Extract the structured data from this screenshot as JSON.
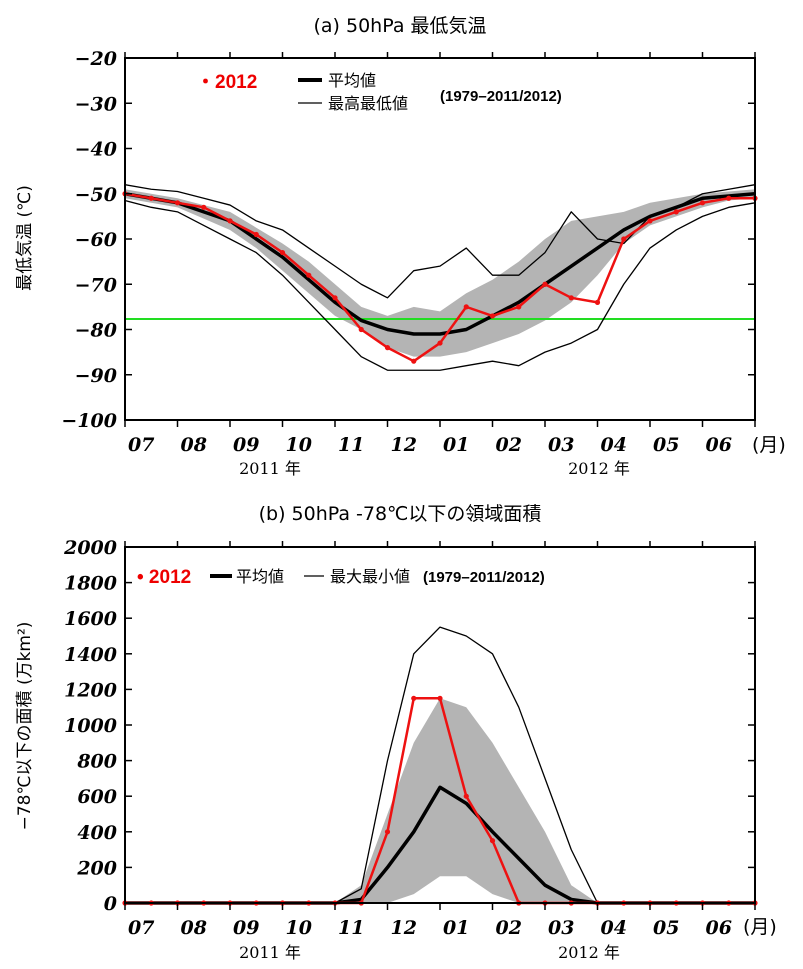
{
  "colors": {
    "red": "#ee1111",
    "mean": "#000000",
    "band": "#b4b4b4",
    "threshold": "#22dd22"
  },
  "months": [
    "07",
    "08",
    "09",
    "10",
    "11",
    "12",
    "01",
    "02",
    "03",
    "04",
    "05",
    "06"
  ],
  "month_unit": "(月)",
  "years": [
    "2011 年",
    "2012 年"
  ],
  "chart_data": [
    {
      "type": "line",
      "title": "(a) 50hPa 最低気温",
      "ylabel": "最低気温 (℃)",
      "ylim": [
        -100,
        -20
      ],
      "yticks": [
        -20,
        -30,
        -40,
        -50,
        -60,
        -70,
        -80,
        -90,
        -100
      ],
      "ytick_labels": [
        "−20",
        "−30",
        "−40",
        "−50",
        "−60",
        "−70",
        "−80",
        "−90",
        "−100"
      ],
      "threshold": -78,
      "legend": {
        "red": "・2012",
        "mean": "平均値",
        "minmax": "最高最低値",
        "period": "(1979–2011/2012)"
      },
      "x": [
        0,
        0.5,
        1,
        1.5,
        2,
        2.5,
        3,
        3.5,
        4,
        4.5,
        5,
        5.5,
        6,
        6.5,
        7,
        7.5,
        8,
        8.5,
        9,
        9.5,
        10,
        10.5,
        11,
        11.5,
        12
      ],
      "series": [
        {
          "name": "平均値",
          "values": [
            -50,
            -51,
            -52,
            -54,
            -56,
            -60,
            -64,
            -69,
            -74,
            -78,
            -80,
            -81,
            -81,
            -80,
            -77,
            -74,
            -70,
            -66,
            -62,
            -58,
            -55,
            -53,
            -51,
            -50.5,
            -50
          ]
        },
        {
          "name": "band_upper",
          "values": [
            -49,
            -50,
            -51,
            -52.5,
            -54,
            -57.5,
            -61,
            -65,
            -70,
            -75,
            -77,
            -75,
            -76,
            -72,
            -69,
            -65,
            -60,
            -56,
            -55,
            -54,
            -52,
            -51,
            -50,
            -49.5,
            -49
          ]
        },
        {
          "name": "band_lower",
          "values": [
            -51,
            -52,
            -53,
            -55.5,
            -58,
            -62,
            -67,
            -72,
            -77,
            -80,
            -84,
            -86,
            -86,
            -85,
            -83,
            -81,
            -78,
            -74,
            -68,
            -61,
            -57,
            -55,
            -53,
            -51.5,
            -51
          ]
        },
        {
          "name": "最高値",
          "values": [
            -48,
            -49,
            -49.5,
            -51,
            -52.5,
            -56,
            -58,
            -62,
            -66,
            -70,
            -73,
            -67,
            -66,
            -62,
            -68,
            -68,
            -63,
            -54,
            -60,
            -61,
            -55,
            -53,
            -50,
            -49,
            -48
          ]
        },
        {
          "name": "最低値",
          "values": [
            -51.5,
            -53,
            -54,
            -57,
            -60,
            -63,
            -68,
            -74,
            -80,
            -86,
            -89,
            -89,
            -89,
            -88,
            -87,
            -88,
            -85,
            -83,
            -80,
            -70,
            -62,
            -58,
            -55,
            -53,
            -52
          ]
        },
        {
          "name": "2012",
          "values": [
            -50,
            -51,
            -52,
            -53,
            -56,
            -59,
            -63,
            -68,
            -73,
            -80,
            -84,
            -87,
            -83,
            -75,
            -77,
            -75,
            -70,
            -73,
            -74,
            -60,
            -56,
            -54,
            -52,
            -51,
            -51
          ]
        }
      ]
    },
    {
      "type": "line",
      "title": "(b) 50hPa -78℃以下の領域面積",
      "ylabel": "−78℃以下の面積 (万km²)",
      "ylim": [
        0,
        2000
      ],
      "yticks": [
        0,
        200,
        400,
        600,
        800,
        1000,
        1200,
        1400,
        1600,
        1800,
        2000
      ],
      "legend": {
        "red": "• 2012",
        "mean": "平均値",
        "minmax": "最大最小値",
        "period": "(1979–2011/2012)"
      },
      "x": [
        0,
        0.5,
        1,
        1.5,
        2,
        2.5,
        3,
        3.5,
        4,
        4.5,
        5,
        5.5,
        6,
        6.5,
        7,
        7.5,
        8,
        8.5,
        9,
        9.5,
        10,
        10.5,
        11,
        11.5,
        12
      ],
      "series": [
        {
          "name": "平均値",
          "values": [
            0,
            0,
            0,
            0,
            0,
            0,
            0,
            0,
            0,
            20,
            200,
            400,
            650,
            560,
            400,
            250,
            100,
            20,
            0,
            0,
            0,
            0,
            0,
            0,
            0
          ]
        },
        {
          "name": "band_upper",
          "values": [
            0,
            0,
            0,
            0,
            0,
            0,
            0,
            0,
            0,
            100,
            500,
            900,
            1150,
            1100,
            900,
            650,
            400,
            100,
            0,
            0,
            0,
            0,
            0,
            0,
            0
          ]
        },
        {
          "name": "band_lower",
          "values": [
            0,
            0,
            0,
            0,
            0,
            0,
            0,
            0,
            0,
            0,
            0,
            50,
            150,
            150,
            50,
            0,
            0,
            0,
            0,
            0,
            0,
            0,
            0,
            0,
            0
          ]
        },
        {
          "name": "最大値",
          "values": [
            0,
            0,
            0,
            0,
            0,
            0,
            0,
            0,
            0,
            80,
            800,
            1400,
            1550,
            1500,
            1400,
            1100,
            700,
            300,
            0,
            0,
            0,
            0,
            0,
            0,
            0
          ]
        },
        {
          "name": "2012",
          "values": [
            0,
            0,
            0,
            0,
            0,
            0,
            0,
            0,
            0,
            0,
            400,
            1150,
            1150,
            600,
            350,
            0,
            0,
            0,
            0,
            0,
            0,
            0,
            0,
            0,
            0
          ]
        }
      ]
    }
  ]
}
